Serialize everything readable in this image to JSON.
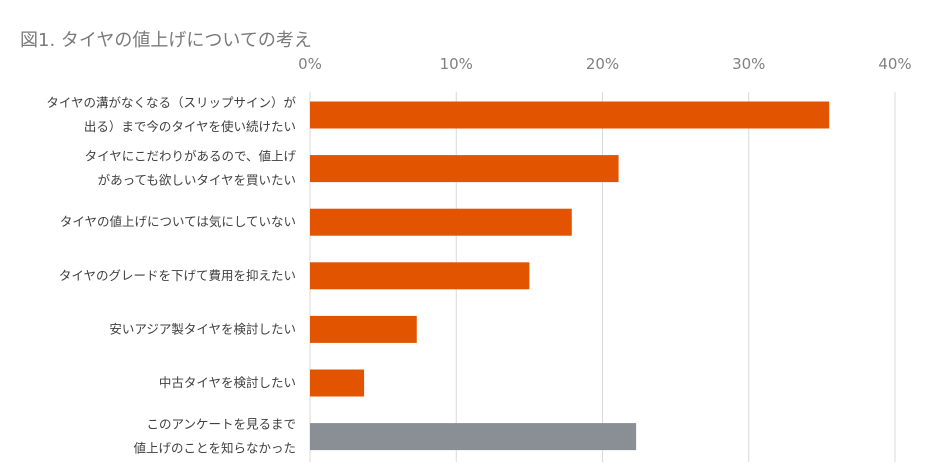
{
  "chart_data": {
    "type": "bar",
    "orientation": "horizontal",
    "title": "図1. タイヤの値上げについての考え",
    "xlim": [
      0,
      40
    ],
    "x_ticks": [
      "0%",
      "10%",
      "20%",
      "30%",
      "40%"
    ],
    "x_tick_values": [
      0,
      10,
      20,
      30,
      40
    ],
    "grid": true,
    "categories": [
      [
        "タイヤの溝がなくなる（スリップサイン）が",
        "出る）まで今のタイヤを使い続けたい"
      ],
      [
        "タイヤにこだわりがあるので、値上げ",
        "があっても欲しいタイヤを買いたい"
      ],
      [
        "タイヤの値上げについては気にしていない"
      ],
      [
        "タイヤのグレードを下げて費用を抑えたい"
      ],
      [
        "安いアジア製タイヤを検討したい"
      ],
      [
        "中古タイヤを検討したい"
      ],
      [
        "このアンケートを見るまで",
        "値上げのことを知らなかった"
      ]
    ],
    "values": [
      35.5,
      21.1,
      17.9,
      15.0,
      7.3,
      3.7,
      22.3
    ],
    "colors": [
      "#e35400",
      "#e35400",
      "#e35400",
      "#e35400",
      "#e35400",
      "#e35400",
      "#8a8f96"
    ]
  }
}
